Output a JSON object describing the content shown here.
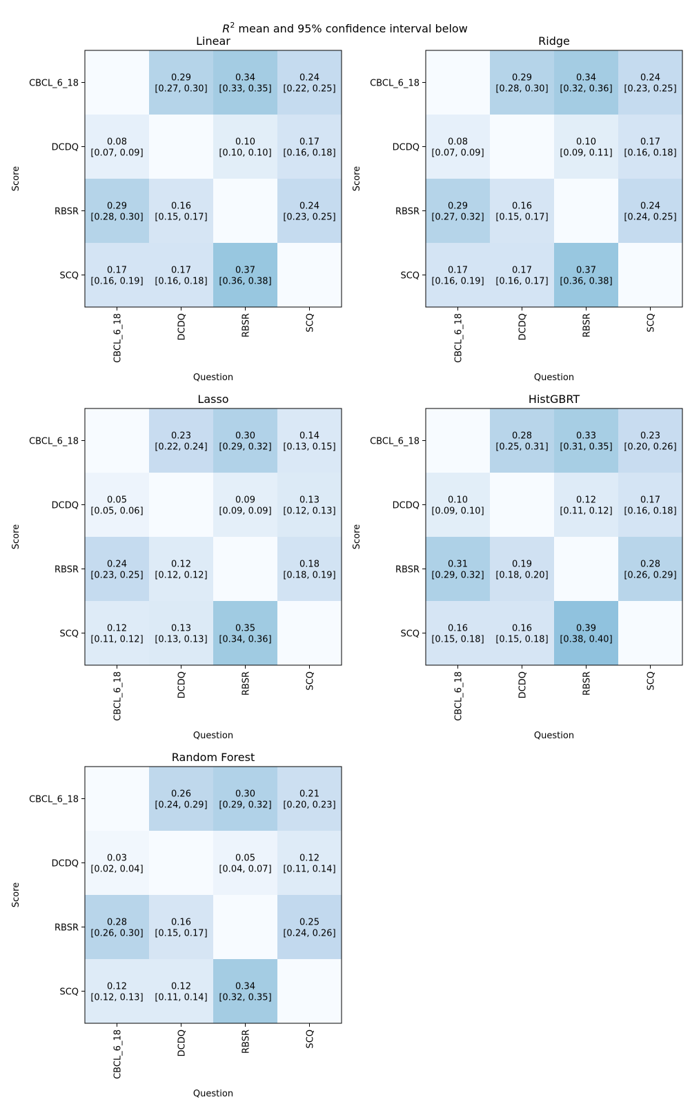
{
  "figure": {
    "suptitle_prefix": "R",
    "suptitle_sup": "2",
    "suptitle_rest": " mean and 95% confidence interval below"
  },
  "chart_data": [
    {
      "type": "heatmap",
      "title": "Linear",
      "xlabel": "Question",
      "ylabel": "Score",
      "x_categories": [
        "CBCL_6_18",
        "DCDQ",
        "RBSR",
        "SCQ"
      ],
      "y_categories": [
        "CBCL_6_18",
        "DCDQ",
        "RBSR",
        "SCQ"
      ],
      "values": [
        [
          null,
          0.29,
          0.34,
          0.24
        ],
        [
          0.08,
          null,
          0.1,
          0.17
        ],
        [
          0.29,
          0.16,
          null,
          0.24
        ],
        [
          0.17,
          0.17,
          0.37,
          null
        ]
      ],
      "ci": [
        [
          null,
          "[0.27, 0.30]",
          "[0.33, 0.35]",
          "[0.22, 0.25]"
        ],
        [
          "[0.07, 0.09]",
          null,
          "[0.10, 0.10]",
          "[0.16, 0.18]"
        ],
        [
          "[0.28, 0.30]",
          "[0.15, 0.17]",
          null,
          "[0.23, 0.25]"
        ],
        [
          "[0.16, 0.19]",
          "[0.16, 0.18]",
          "[0.36, 0.38]",
          null
        ]
      ]
    },
    {
      "type": "heatmap",
      "title": "Ridge",
      "xlabel": "Question",
      "ylabel": "Score",
      "x_categories": [
        "CBCL_6_18",
        "DCDQ",
        "RBSR",
        "SCQ"
      ],
      "y_categories": [
        "CBCL_6_18",
        "DCDQ",
        "RBSR",
        "SCQ"
      ],
      "values": [
        [
          null,
          0.29,
          0.34,
          0.24
        ],
        [
          0.08,
          null,
          0.1,
          0.17
        ],
        [
          0.29,
          0.16,
          null,
          0.24
        ],
        [
          0.17,
          0.17,
          0.37,
          null
        ]
      ],
      "ci": [
        [
          null,
          "[0.28, 0.30]",
          "[0.32, 0.36]",
          "[0.23, 0.25]"
        ],
        [
          "[0.07, 0.09]",
          null,
          "[0.09, 0.11]",
          "[0.16, 0.18]"
        ],
        [
          "[0.27, 0.32]",
          "[0.15, 0.17]",
          null,
          "[0.24, 0.25]"
        ],
        [
          "[0.16, 0.19]",
          "[0.16, 0.17]",
          "[0.36, 0.38]",
          null
        ]
      ]
    },
    {
      "type": "heatmap",
      "title": "Lasso",
      "xlabel": "Question",
      "ylabel": "Score",
      "x_categories": [
        "CBCL_6_18",
        "DCDQ",
        "RBSR",
        "SCQ"
      ],
      "y_categories": [
        "CBCL_6_18",
        "DCDQ",
        "RBSR",
        "SCQ"
      ],
      "values": [
        [
          null,
          0.23,
          0.3,
          0.14
        ],
        [
          0.05,
          null,
          0.09,
          0.13
        ],
        [
          0.24,
          0.12,
          null,
          0.18
        ],
        [
          0.12,
          0.13,
          0.35,
          null
        ]
      ],
      "ci": [
        [
          null,
          "[0.22, 0.24]",
          "[0.29, 0.32]",
          "[0.13, 0.15]"
        ],
        [
          "[0.05, 0.06]",
          null,
          "[0.09, 0.09]",
          "[0.12, 0.13]"
        ],
        [
          "[0.23, 0.25]",
          "[0.12, 0.12]",
          null,
          "[0.18, 0.19]"
        ],
        [
          "[0.11, 0.12]",
          "[0.13, 0.13]",
          "[0.34, 0.36]",
          null
        ]
      ]
    },
    {
      "type": "heatmap",
      "title": "HistGBRT",
      "xlabel": "Question",
      "ylabel": "Score",
      "x_categories": [
        "CBCL_6_18",
        "DCDQ",
        "RBSR",
        "SCQ"
      ],
      "y_categories": [
        "CBCL_6_18",
        "DCDQ",
        "RBSR",
        "SCQ"
      ],
      "values": [
        [
          null,
          0.28,
          0.33,
          0.23
        ],
        [
          0.1,
          null,
          0.12,
          0.17
        ],
        [
          0.31,
          0.19,
          null,
          0.28
        ],
        [
          0.16,
          0.16,
          0.39,
          null
        ]
      ],
      "ci": [
        [
          null,
          "[0.25, 0.31]",
          "[0.31, 0.35]",
          "[0.20, 0.26]"
        ],
        [
          "[0.09, 0.10]",
          null,
          "[0.11, 0.12]",
          "[0.16, 0.18]"
        ],
        [
          "[0.29, 0.32]",
          "[0.18, 0.20]",
          null,
          "[0.26, 0.29]"
        ],
        [
          "[0.15, 0.18]",
          "[0.15, 0.18]",
          "[0.38, 0.40]",
          null
        ]
      ]
    },
    {
      "type": "heatmap",
      "title": "Random Forest",
      "xlabel": "Question",
      "ylabel": "Score",
      "x_categories": [
        "CBCL_6_18",
        "DCDQ",
        "RBSR",
        "SCQ"
      ],
      "y_categories": [
        "CBCL_6_18",
        "DCDQ",
        "RBSR",
        "SCQ"
      ],
      "values": [
        [
          null,
          0.26,
          0.3,
          0.21
        ],
        [
          0.03,
          null,
          0.05,
          0.12
        ],
        [
          0.28,
          0.16,
          null,
          0.25
        ],
        [
          0.12,
          0.12,
          0.34,
          null
        ]
      ],
      "ci": [
        [
          null,
          "[0.24, 0.29]",
          "[0.29, 0.32]",
          "[0.20, 0.23]"
        ],
        [
          "[0.02, 0.04]",
          null,
          "[0.04, 0.07]",
          "[0.11, 0.14]"
        ],
        [
          "[0.26, 0.30]",
          "[0.15, 0.17]",
          null,
          "[0.24, 0.26]"
        ],
        [
          "[0.12, 0.13]",
          "[0.11, 0.14]",
          "[0.32, 0.35]",
          null
        ]
      ]
    }
  ],
  "colors": {
    "colormap": "Blues",
    "empty_cell": "#f7fbff",
    "frame": "#000000"
  }
}
